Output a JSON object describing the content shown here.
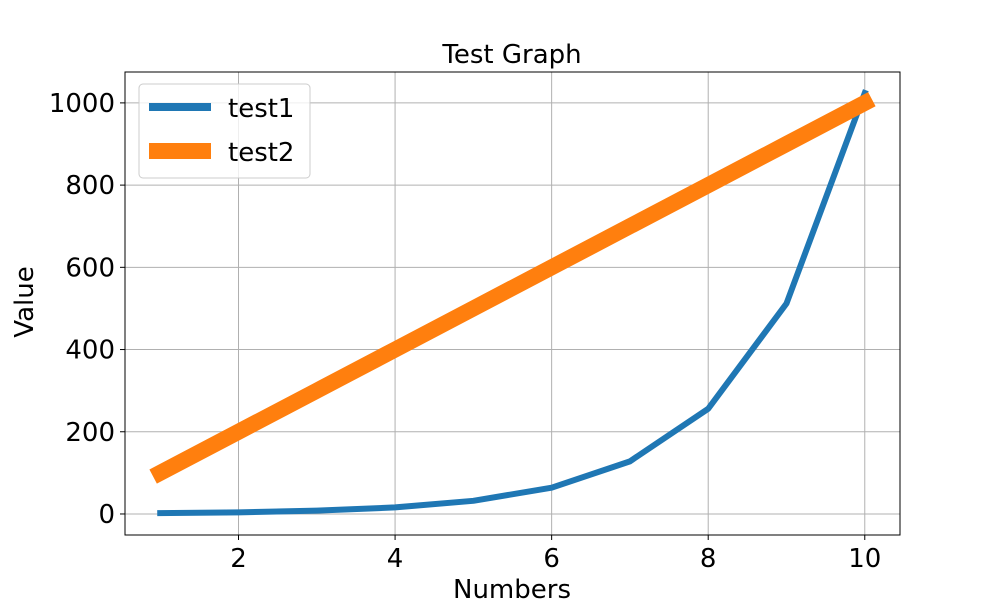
{
  "chart_data": {
    "type": "line",
    "title": "Test Graph",
    "xlabel": "Numbers",
    "ylabel": "Value",
    "x": [
      1,
      2,
      3,
      4,
      5,
      6,
      7,
      8,
      9,
      10
    ],
    "xlim": [
      0.55,
      10.45
    ],
    "ylim": [
      -51.15,
      1075.15
    ],
    "xticks": [
      2,
      4,
      6,
      8,
      10
    ],
    "xtick_labels": [
      "2",
      "4",
      "6",
      "8",
      "10"
    ],
    "yticks": [
      0,
      200,
      400,
      600,
      800,
      1000
    ],
    "ytick_labels": [
      "0",
      "200",
      "400",
      "600",
      "800",
      "1000"
    ],
    "grid": true,
    "legend_position": "top-left",
    "series": [
      {
        "name": "test1",
        "color": "#1f77b4",
        "values": [
          2,
          4,
          8,
          16,
          32,
          64,
          128,
          256,
          512,
          1024
        ]
      },
      {
        "name": "test2",
        "color": "#ff7f0e",
        "values": [
          100,
          200,
          300,
          400,
          500,
          600,
          700,
          800,
          900,
          1000
        ]
      }
    ]
  }
}
